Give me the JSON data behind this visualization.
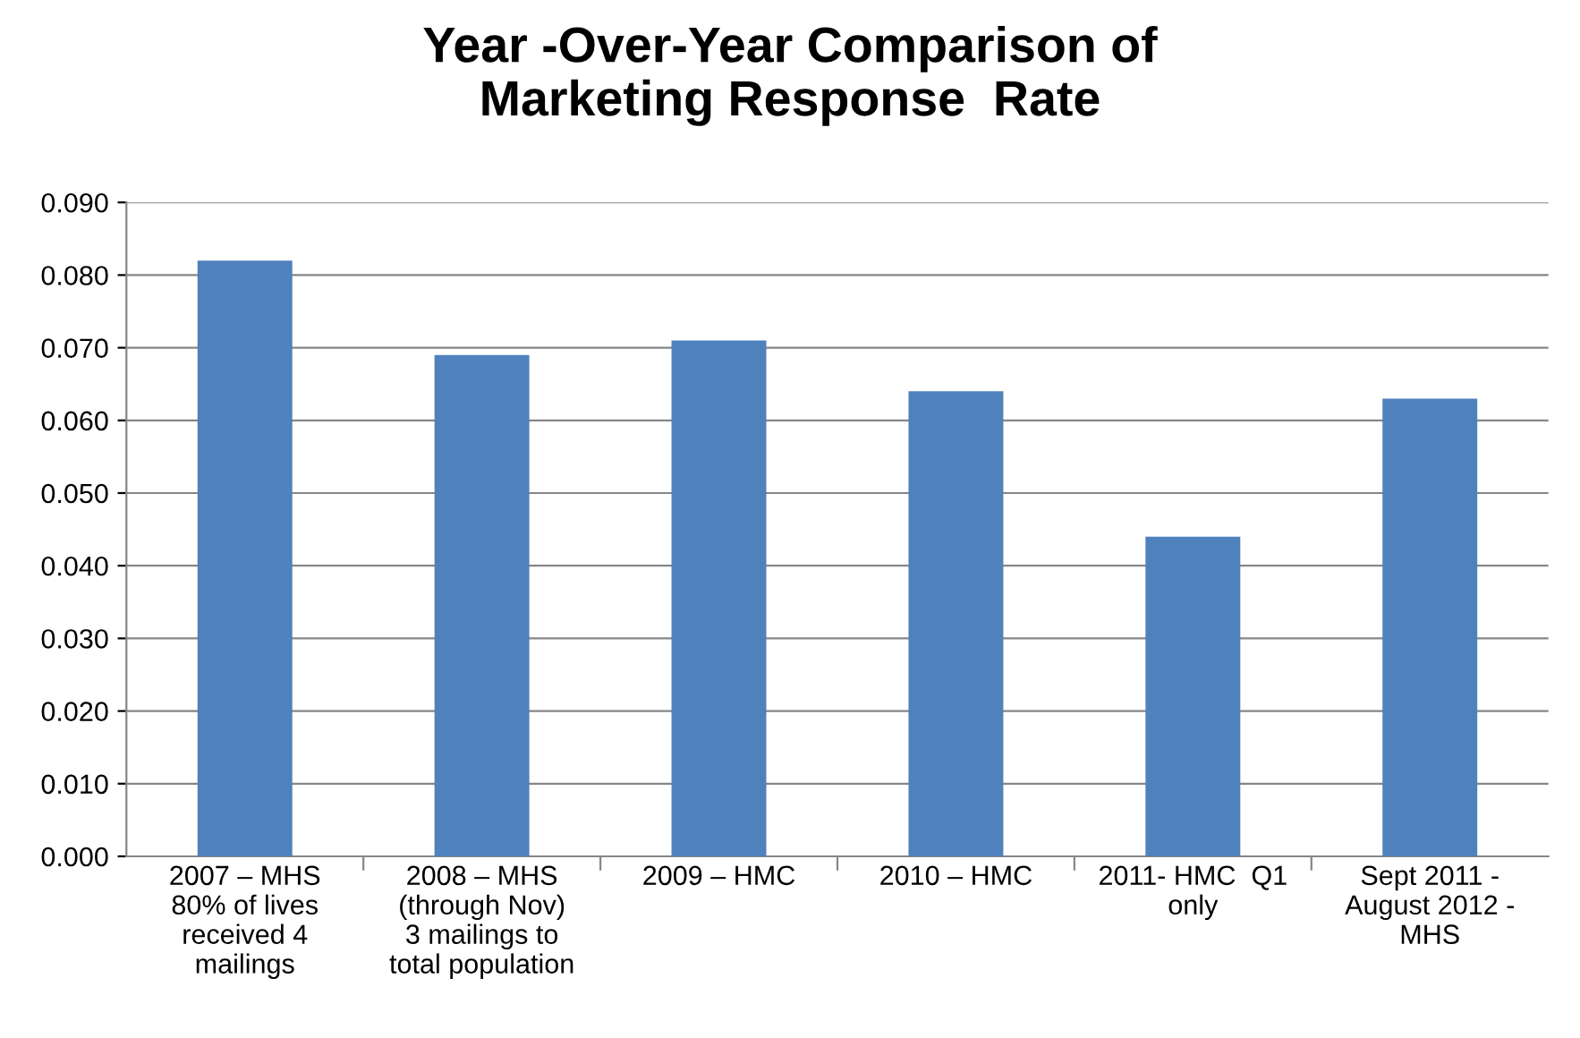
{
  "chart_data": {
    "type": "bar",
    "title": "Year -Over-Year Comparison of\nMarketing Response  Rate",
    "categories": [
      "2007 – MHS\n80% of lives\nreceived 4\nmailings",
      "2008 – MHS\n(through Nov)\n3 mailings to\ntotal population",
      "2009 – HMC",
      "2010 – HMC",
      "2011- HMC  Q1\nonly",
      "Sept 2011 -\nAugust 2012 -\nMHS"
    ],
    "values": [
      0.082,
      0.069,
      0.071,
      0.064,
      0.044,
      0.063
    ],
    "color": "#4f81bd",
    "ylim": [
      0,
      0.09
    ],
    "yticks": [
      {
        "value": 0,
        "label": "0.000"
      },
      {
        "value": 0.01,
        "label": "0.010"
      },
      {
        "value": 0.02,
        "label": "0.020"
      },
      {
        "value": 0.03,
        "label": "0.030"
      },
      {
        "value": 0.04,
        "label": "0.040"
      },
      {
        "value": 0.05,
        "label": "0.050"
      },
      {
        "value": 0.06,
        "label": "0.060"
      },
      {
        "value": 0.07,
        "label": "0.070"
      },
      {
        "value": 0.08,
        "label": "0.080"
      },
      {
        "value": 0.09,
        "label": "0.090"
      }
    ],
    "grid": "y",
    "legend": false
  }
}
